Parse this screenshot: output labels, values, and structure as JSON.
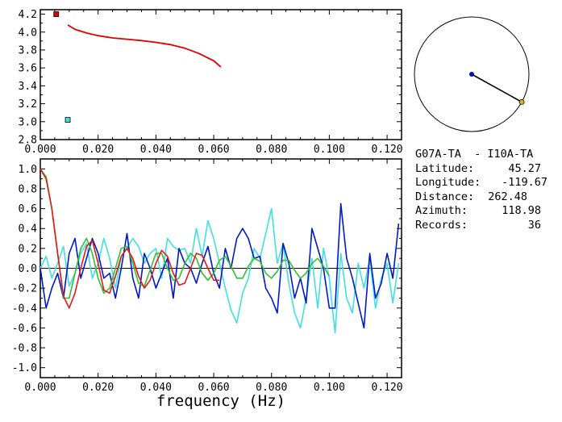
{
  "chart_data": [
    {
      "type": "scatter",
      "xlim": [
        0.0,
        0.125
      ],
      "ylim": [
        2.8,
        4.25
      ],
      "x_ticks": [
        "0.000",
        "0.020",
        "0.040",
        "0.060",
        "0.080",
        "0.100",
        "0.120"
      ],
      "y_ticks": [
        "2.8",
        "3.0",
        "3.2",
        "3.4",
        "3.6",
        "3.8",
        "4.0",
        "4.2"
      ],
      "series": [
        {
          "color": "#e00000",
          "kind": "line",
          "points": [
            [
              0.0095,
              4.08
            ],
            [
              0.012,
              4.03
            ],
            [
              0.016,
              3.99
            ],
            [
              0.02,
              3.96
            ],
            [
              0.025,
              3.935
            ],
            [
              0.03,
              3.92
            ],
            [
              0.035,
              3.905
            ],
            [
              0.04,
              3.885
            ],
            [
              0.045,
              3.86
            ],
            [
              0.05,
              3.82
            ],
            [
              0.055,
              3.76
            ],
            [
              0.06,
              3.68
            ],
            [
              0.0625,
              3.61
            ]
          ]
        },
        {
          "color": "#e00000",
          "kind": "marker",
          "points": [
            [
              0.0055,
              4.2
            ]
          ]
        },
        {
          "color": "#40e0e0",
          "kind": "marker",
          "points": [
            [
              0.0095,
              3.02
            ]
          ]
        }
      ]
    },
    {
      "type": "line",
      "xlim": [
        0.0,
        0.125
      ],
      "ylim": [
        -1.1,
        1.1
      ],
      "xlabel": "frequency (Hz)",
      "x_ticks": [
        "0.000",
        "0.020",
        "0.040",
        "0.060",
        "0.080",
        "0.100",
        "0.120"
      ],
      "y_ticks": [
        "1.0",
        "0.8",
        "0.6",
        "0.4",
        "0.2",
        "0.0",
        "-0.2",
        "-0.4",
        "-0.6",
        "-0.8",
        "-1.0"
      ],
      "series": [
        {
          "color": "#40e0e0",
          "x": [
            0.0,
            0.002,
            0.004,
            0.006,
            0.008,
            0.01,
            0.012,
            0.014,
            0.016,
            0.018,
            0.02,
            0.022,
            0.024,
            0.026,
            0.028,
            0.03,
            0.032,
            0.034,
            0.036,
            0.038,
            0.04,
            0.042,
            0.044,
            0.046,
            0.048,
            0.05,
            0.052,
            0.054,
            0.056,
            0.058,
            0.06,
            0.062,
            0.064,
            0.066,
            0.068,
            0.07,
            0.072,
            0.074,
            0.076,
            0.078,
            0.08,
            0.082,
            0.084,
            0.086,
            0.088,
            0.09,
            0.092,
            0.094,
            0.096,
            0.098,
            0.1,
            0.102,
            0.104,
            0.106,
            0.108,
            0.11,
            0.112,
            0.114,
            0.116,
            0.118,
            0.12,
            0.122,
            0.124
          ],
          "y": [
            0.0,
            0.12,
            -0.1,
            0.05,
            0.22,
            -0.18,
            -0.05,
            0.15,
            0.25,
            -0.1,
            0.05,
            0.3,
            0.1,
            -0.2,
            0.12,
            0.2,
            0.3,
            0.22,
            0.05,
            0.15,
            0.2,
            -0.1,
            0.3,
            0.22,
            0.18,
            0.2,
            0.05,
            0.4,
            0.12,
            0.48,
            0.3,
            0.05,
            -0.2,
            -0.42,
            -0.55,
            -0.25,
            -0.1,
            0.2,
            0.1,
            0.35,
            0.6,
            0.05,
            0.25,
            -0.15,
            -0.45,
            -0.6,
            -0.3,
            0.1,
            -0.4,
            0.2,
            -0.1,
            -0.65,
            0.15,
            -0.3,
            -0.45,
            0.05,
            -0.2,
            0.1,
            -0.4,
            -0.1,
            0.05,
            -0.35,
            0.05
          ]
        },
        {
          "color": "#0018c8",
          "x": [
            0.0,
            0.002,
            0.004,
            0.006,
            0.008,
            0.01,
            0.012,
            0.014,
            0.016,
            0.018,
            0.02,
            0.022,
            0.024,
            0.026,
            0.028,
            0.03,
            0.032,
            0.034,
            0.036,
            0.038,
            0.04,
            0.042,
            0.044,
            0.046,
            0.048,
            0.05,
            0.052,
            0.054,
            0.056,
            0.058,
            0.06,
            0.062,
            0.064,
            0.066,
            0.068,
            0.07,
            0.072,
            0.074,
            0.076,
            0.078,
            0.08,
            0.082,
            0.084,
            0.086,
            0.088,
            0.09,
            0.092,
            0.094,
            0.096,
            0.098,
            0.1,
            0.102,
            0.104,
            0.106,
            0.108,
            0.11,
            0.112,
            0.114,
            0.116,
            0.118,
            0.12,
            0.122,
            0.124
          ],
          "y": [
            0.0,
            -0.4,
            -0.2,
            -0.05,
            -0.3,
            0.15,
            0.3,
            -0.1,
            0.1,
            0.3,
            0.15,
            -0.1,
            -0.05,
            -0.3,
            0.0,
            0.35,
            -0.1,
            -0.3,
            0.15,
            0.0,
            -0.2,
            -0.05,
            0.1,
            -0.3,
            0.2,
            0.05,
            0.0,
            -0.15,
            0.05,
            0.22,
            -0.05,
            -0.2,
            0.2,
            0.0,
            0.3,
            0.4,
            0.3,
            0.1,
            0.12,
            -0.2,
            -0.3,
            -0.45,
            0.25,
            0.05,
            -0.3,
            -0.1,
            -0.35,
            0.4,
            0.2,
            0.0,
            -0.4,
            -0.4,
            0.65,
            0.1,
            -0.1,
            -0.35,
            -0.6,
            0.15,
            -0.3,
            -0.15,
            0.15,
            -0.1,
            0.45
          ]
        },
        {
          "color": "#30c030",
          "x": [
            0.0,
            0.002,
            0.004,
            0.006,
            0.008,
            0.01,
            0.012,
            0.014,
            0.016,
            0.018,
            0.02,
            0.022,
            0.024,
            0.026,
            0.028,
            0.03,
            0.032,
            0.034,
            0.036,
            0.038,
            0.04,
            0.042,
            0.044,
            0.046,
            0.048,
            0.05,
            0.052,
            0.054,
            0.056,
            0.058,
            0.06,
            0.062,
            0.064,
            0.066,
            0.068,
            0.07,
            0.072,
            0.074,
            0.076,
            0.078,
            0.08,
            0.082,
            0.084,
            0.086,
            0.088,
            0.09,
            0.092,
            0.094,
            0.096,
            0.098,
            0.1
          ],
          "y": [
            1.0,
            0.92,
            0.6,
            0.15,
            -0.3,
            -0.3,
            -0.05,
            0.2,
            0.3,
            0.15,
            -0.1,
            -0.25,
            -0.2,
            0.0,
            0.2,
            0.22,
            0.05,
            -0.15,
            -0.18,
            -0.02,
            0.15,
            0.15,
            0.0,
            -0.12,
            -0.1,
            0.05,
            0.15,
            0.1,
            -0.05,
            -0.12,
            -0.05,
            0.08,
            0.12,
            0.02,
            -0.1,
            -0.1,
            0.02,
            0.1,
            0.07,
            -0.05,
            -0.1,
            -0.03,
            0.08,
            0.08,
            -0.02,
            -0.1,
            -0.05,
            0.05,
            0.1,
            0.02,
            -0.08
          ]
        },
        {
          "color": "#e01818",
          "x": [
            0.0,
            0.002,
            0.004,
            0.006,
            0.008,
            0.01,
            0.012,
            0.014,
            0.016,
            0.018,
            0.02,
            0.022,
            0.024,
            0.026,
            0.028,
            0.03,
            0.032,
            0.034,
            0.036,
            0.038,
            0.04,
            0.042,
            0.044,
            0.046,
            0.048,
            0.05,
            0.052,
            0.054,
            0.056,
            0.058,
            0.06,
            0.062
          ],
          "y": [
            1.0,
            0.9,
            0.6,
            0.15,
            -0.28,
            -0.4,
            -0.25,
            0.0,
            0.22,
            0.28,
            0.05,
            -0.22,
            -0.25,
            -0.08,
            0.12,
            0.2,
            0.1,
            -0.08,
            -0.2,
            -0.12,
            0.05,
            0.18,
            0.12,
            -0.05,
            -0.17,
            -0.15,
            0.0,
            0.15,
            0.13,
            0.0,
            -0.12,
            -0.12
          ]
        }
      ]
    }
  ],
  "map": {
    "station_colors": {
      "center": "#0010c0",
      "remote": "#e8b020"
    },
    "azimuth_deg": 118.98,
    "distance_fraction": 1.0
  },
  "info": {
    "pair": "G07A-TA  - I10A-TA",
    "rows": [
      {
        "label": "Latitude:",
        "value": "45.27"
      },
      {
        "label": "Longitude:",
        "value": "-119.67"
      },
      {
        "label": "Distance:",
        "value": "262.48"
      },
      {
        "label": "Azimuth:",
        "value": "118.98"
      },
      {
        "label": "Records:",
        "value": "36"
      }
    ]
  }
}
